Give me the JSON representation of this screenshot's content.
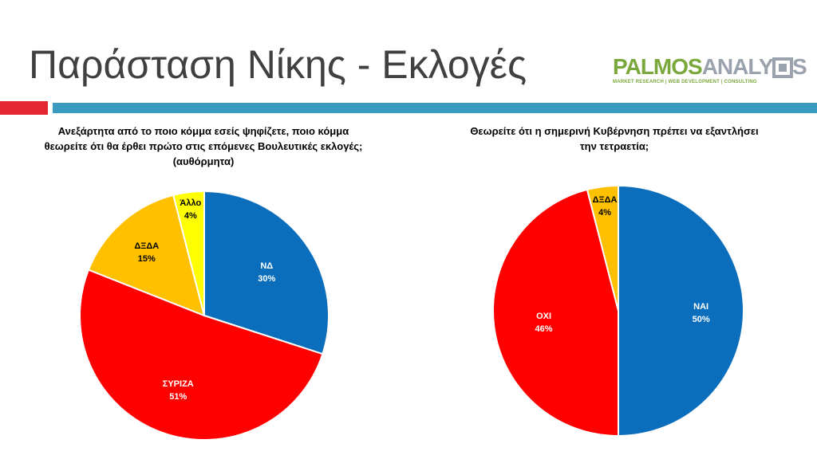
{
  "slide": {
    "title": "Παράσταση Νίκης - Εκλογές",
    "logo": {
      "part1": "PALMOS",
      "part2": "ANALYSIS",
      "tagline": "MARKET RESEARCH | WEB DEVELOPMENT | CONSULTING",
      "colors": {
        "green": "#7aa83c",
        "gray": "#9aa3ad"
      }
    },
    "accent_colors": {
      "red_bar": "#e3262f",
      "blue_bar": "#3a9bc1"
    }
  },
  "chart_data": [
    {
      "type": "pie",
      "title": "Ανεξάρτητα από το ποιο κόμμα εσείς ψηφίζετε, ποιο κόμμα θεωρείτε ότι θα έρθει πρώτο στις επόμενες Βουλευτικές εκλογές; (αυθόρμητα)",
      "start": "12 o'clock, clockwise",
      "slices": [
        {
          "label": "ΝΔ",
          "value": 30,
          "display": "30%",
          "color": "#0a6ebd",
          "label_color": "#ffffff"
        },
        {
          "label": "ΣΥΡΙΖΑ",
          "value": 51,
          "display": "51%",
          "color": "#ff0000",
          "label_color": "#ffffff"
        },
        {
          "label": "ΔΞΔΑ",
          "value": 15,
          "display": "15%",
          "color": "#ffc000",
          "label_color": "#000000"
        },
        {
          "label": "Άλλο",
          "value": 4,
          "display": "4%",
          "color": "#ffff00",
          "label_color": "#000000"
        }
      ]
    },
    {
      "type": "pie",
      "title": "Θεωρείτε ότι η σημερινή Κυβέρνηση πρέπει να εξαντλήσει την τετραετία;",
      "start": "12 o'clock, clockwise",
      "slices": [
        {
          "label": "ΝΑΙ",
          "value": 50,
          "display": "50%",
          "color": "#0a6ebd",
          "label_color": "#ffffff"
        },
        {
          "label": "ΟΧΙ",
          "value": 46,
          "display": "46%",
          "color": "#ff0000",
          "label_color": "#ffffff"
        },
        {
          "label": "ΔΞΔΑ",
          "value": 4,
          "display": "4%",
          "color": "#ffc000",
          "label_color": "#000000"
        }
      ]
    }
  ]
}
